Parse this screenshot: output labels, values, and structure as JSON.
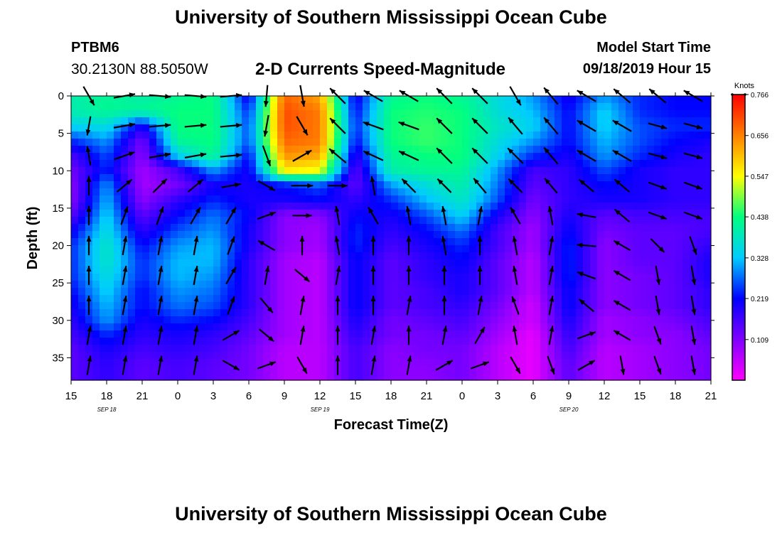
{
  "header": {
    "title": "University of Southern Mississippi Ocean Cube",
    "station_id": "PTBM6",
    "station_coords": "30.2130N 88.5050W",
    "subtitle": "2-D Currents Speed-Magnitude",
    "model_start_label": "Model Start Time",
    "model_start_value": "09/18/2019 Hour 15"
  },
  "footer": {
    "title": "University of Southern Mississippi Ocean Cube"
  },
  "chart_data": {
    "type": "heatmap",
    "title": "2-D Currents Speed-Magnitude",
    "xlabel": "Forecast Time(Z)",
    "ylabel": "Depth (ft)",
    "x_tick_labels": [
      "15",
      "18",
      "21",
      "0",
      "3",
      "6",
      "9",
      "12",
      "15",
      "18",
      "21",
      "0",
      "3",
      "6",
      "9",
      "12",
      "15",
      "18",
      "21"
    ],
    "date_labels": [
      {
        "text": "SEP 18",
        "at_tick": 1
      },
      {
        "text": "SEP 19",
        "at_tick": 7
      },
      {
        "text": "SEP 20",
        "at_tick": 14
      }
    ],
    "xlim_hours": [
      0,
      54
    ],
    "y_ticks": [
      0,
      5,
      10,
      15,
      20,
      25,
      30,
      35
    ],
    "ylim_ft": [
      0,
      38
    ],
    "y_inverted": true,
    "colorbar": {
      "unit_label": "Knots",
      "tick_labels": [
        "0.766",
        "0.656",
        "0.547",
        "0.438",
        "0.328",
        "0.219",
        "0.109"
      ],
      "range": [
        0,
        0.766
      ],
      "colors": [
        "#ff00ff",
        "#8000ff",
        "#0000ff",
        "#00ccff",
        "#00ff80",
        "#ffff00",
        "#ff8000",
        "#ff0000"
      ]
    },
    "speed_grid": {
      "depths_ft": [
        0,
        2,
        4,
        6,
        8,
        10,
        12,
        14,
        16,
        18,
        20,
        22,
        24,
        26,
        28,
        30,
        32,
        34,
        36,
        38
      ],
      "hours": [
        0,
        3,
        6,
        9,
        12,
        15,
        18,
        21,
        24,
        27,
        30,
        33,
        36,
        39,
        42,
        45,
        48,
        51,
        54
      ],
      "values": [
        [
          0.4,
          0.42,
          0.4,
          0.42,
          0.44,
          0.2,
          0.68,
          0.62,
          0.2,
          0.42,
          0.44,
          0.42,
          0.36,
          0.3,
          0.2,
          0.3,
          0.24,
          0.22,
          0.22
        ],
        [
          0.4,
          0.42,
          0.42,
          0.44,
          0.44,
          0.24,
          0.7,
          0.66,
          0.22,
          0.44,
          0.45,
          0.44,
          0.36,
          0.32,
          0.22,
          0.34,
          0.24,
          0.22,
          0.22
        ],
        [
          0.34,
          0.36,
          0.2,
          0.44,
          0.44,
          0.26,
          0.7,
          0.66,
          0.24,
          0.44,
          0.46,
          0.44,
          0.38,
          0.34,
          0.22,
          0.34,
          0.26,
          0.24,
          0.24
        ],
        [
          0.24,
          0.3,
          0.12,
          0.42,
          0.44,
          0.26,
          0.68,
          0.66,
          0.22,
          0.44,
          0.46,
          0.44,
          0.36,
          0.3,
          0.22,
          0.32,
          0.26,
          0.22,
          0.2
        ],
        [
          0.16,
          0.26,
          0.1,
          0.34,
          0.42,
          0.22,
          0.64,
          0.62,
          0.18,
          0.42,
          0.44,
          0.44,
          0.34,
          0.24,
          0.2,
          0.3,
          0.24,
          0.2,
          0.18
        ],
        [
          0.12,
          0.24,
          0.08,
          0.16,
          0.3,
          0.2,
          0.56,
          0.54,
          0.14,
          0.4,
          0.42,
          0.42,
          0.3,
          0.16,
          0.18,
          0.26,
          0.2,
          0.18,
          0.18
        ],
        [
          0.1,
          0.3,
          0.08,
          0.12,
          0.2,
          0.2,
          0.22,
          0.26,
          0.14,
          0.3,
          0.36,
          0.4,
          0.28,
          0.14,
          0.18,
          0.22,
          0.2,
          0.18,
          0.18
        ],
        [
          0.1,
          0.32,
          0.1,
          0.18,
          0.24,
          0.2,
          0.2,
          0.22,
          0.18,
          0.24,
          0.32,
          0.38,
          0.26,
          0.12,
          0.18,
          0.2,
          0.2,
          0.18,
          0.18
        ],
        [
          0.14,
          0.34,
          0.14,
          0.22,
          0.28,
          0.22,
          0.1,
          0.1,
          0.22,
          0.2,
          0.26,
          0.34,
          0.2,
          0.1,
          0.2,
          0.14,
          0.16,
          0.16,
          0.16
        ],
        [
          0.2,
          0.36,
          0.18,
          0.26,
          0.3,
          0.2,
          0.1,
          0.08,
          0.24,
          0.18,
          0.22,
          0.28,
          0.16,
          0.08,
          0.22,
          0.12,
          0.14,
          0.14,
          0.16
        ],
        [
          0.24,
          0.38,
          0.22,
          0.3,
          0.32,
          0.2,
          0.1,
          0.08,
          0.24,
          0.16,
          0.2,
          0.24,
          0.16,
          0.08,
          0.24,
          0.1,
          0.14,
          0.14,
          0.18
        ],
        [
          0.24,
          0.38,
          0.24,
          0.32,
          0.32,
          0.18,
          0.08,
          0.06,
          0.22,
          0.14,
          0.18,
          0.22,
          0.14,
          0.06,
          0.24,
          0.1,
          0.14,
          0.14,
          0.2
        ],
        [
          0.24,
          0.36,
          0.24,
          0.32,
          0.3,
          0.18,
          0.08,
          0.06,
          0.22,
          0.14,
          0.18,
          0.2,
          0.14,
          0.06,
          0.24,
          0.1,
          0.12,
          0.14,
          0.2
        ],
        [
          0.22,
          0.34,
          0.22,
          0.3,
          0.28,
          0.18,
          0.08,
          0.06,
          0.22,
          0.14,
          0.16,
          0.2,
          0.14,
          0.06,
          0.22,
          0.1,
          0.12,
          0.14,
          0.18
        ],
        [
          0.2,
          0.32,
          0.22,
          0.28,
          0.26,
          0.18,
          0.08,
          0.06,
          0.22,
          0.14,
          0.16,
          0.18,
          0.12,
          0.04,
          0.22,
          0.1,
          0.12,
          0.14,
          0.18
        ],
        [
          0.18,
          0.3,
          0.2,
          0.24,
          0.22,
          0.16,
          0.08,
          0.06,
          0.2,
          0.12,
          0.14,
          0.16,
          0.1,
          0.04,
          0.2,
          0.08,
          0.1,
          0.12,
          0.16
        ],
        [
          0.16,
          0.24,
          0.18,
          0.2,
          0.18,
          0.14,
          0.08,
          0.06,
          0.18,
          0.12,
          0.12,
          0.14,
          0.08,
          0.02,
          0.18,
          0.08,
          0.1,
          0.1,
          0.14
        ],
        [
          0.14,
          0.2,
          0.16,
          0.18,
          0.16,
          0.12,
          0.06,
          0.06,
          0.16,
          0.1,
          0.12,
          0.12,
          0.06,
          0.02,
          0.16,
          0.06,
          0.08,
          0.1,
          0.12
        ],
        [
          0.14,
          0.18,
          0.14,
          0.16,
          0.14,
          0.12,
          0.06,
          0.06,
          0.16,
          0.1,
          0.1,
          0.12,
          0.06,
          0.02,
          0.14,
          0.06,
          0.08,
          0.1,
          0.12
        ],
        [
          0.14,
          0.18,
          0.14,
          0.16,
          0.14,
          0.12,
          0.06,
          0.06,
          0.16,
          0.1,
          0.1,
          0.12,
          0.06,
          0.02,
          0.14,
          0.06,
          0.08,
          0.1,
          0.12
        ]
      ]
    },
    "current_vectors": {
      "note": "Direction angles in degrees (0 = pointing right, 90 = pointing up on the figure), relative length 0-1",
      "depths_ft": [
        0,
        4,
        8,
        12,
        16,
        20,
        24,
        28,
        32,
        36
      ],
      "hours": [
        1.5,
        4.5,
        7.5,
        10.5,
        13.5,
        16.5,
        19.5,
        22.5,
        25.5,
        28.5,
        31.5,
        34.5,
        37.5,
        40.5,
        43.5,
        46.5,
        49.5,
        52.5
      ],
      "angles": [
        [
          -60,
          10,
          -5,
          -5,
          5,
          -95,
          -80,
          135,
          150,
          150,
          135,
          135,
          -60,
          130,
          150,
          140,
          140,
          150
        ],
        [
          -100,
          10,
          5,
          5,
          5,
          -100,
          -60,
          135,
          160,
          160,
          135,
          135,
          130,
          130,
          150,
          150,
          -15,
          -15
        ],
        [
          100,
          20,
          10,
          10,
          5,
          -70,
          30,
          140,
          155,
          155,
          135,
          135,
          135,
          130,
          150,
          150,
          -15,
          -15
        ],
        [
          90,
          40,
          45,
          40,
          10,
          -30,
          0,
          0,
          100,
          135,
          135,
          130,
          135,
          130,
          140,
          140,
          -20,
          -20
        ],
        [
          90,
          70,
          70,
          60,
          60,
          20,
          0,
          100,
          120,
          100,
          100,
          80,
          120,
          100,
          170,
          140,
          -20,
          -20
        ],
        [
          90,
          80,
          80,
          80,
          70,
          150,
          90,
          100,
          90,
          90,
          100,
          90,
          100,
          80,
          175,
          150,
          -45,
          -70
        ],
        [
          90,
          80,
          80,
          80,
          60,
          80,
          -40,
          80,
          90,
          90,
          90,
          90,
          100,
          80,
          160,
          150,
          -80,
          -80
        ],
        [
          90,
          80,
          80,
          80,
          70,
          -50,
          80,
          90,
          90,
          80,
          90,
          80,
          110,
          80,
          140,
          150,
          -80,
          -80
        ],
        [
          80,
          80,
          80,
          80,
          30,
          -40,
          80,
          90,
          80,
          90,
          80,
          60,
          100,
          80,
          20,
          150,
          -70,
          -80
        ],
        [
          80,
          80,
          80,
          80,
          -30,
          20,
          -60,
          90,
          80,
          80,
          30,
          20,
          -60,
          -70,
          30,
          -80,
          -70,
          -80
        ]
      ],
      "lengths": [
        [
          0.9,
          0.9,
          0.9,
          0.9,
          0.9,
          0.9,
          0.9,
          0.9,
          0.9,
          0.9,
          0.9,
          0.9,
          0.9,
          0.9,
          0.9,
          0.9,
          0.9,
          0.9
        ],
        [
          0.8,
          0.9,
          0.9,
          0.9,
          0.9,
          0.9,
          0.9,
          0.9,
          0.9,
          0.9,
          0.9,
          0.9,
          0.9,
          0.9,
          0.9,
          0.9,
          0.8,
          0.8
        ],
        [
          0.8,
          0.9,
          0.9,
          0.9,
          0.9,
          0.9,
          0.9,
          0.9,
          0.9,
          0.9,
          0.9,
          0.9,
          0.9,
          0.9,
          0.9,
          0.9,
          0.8,
          0.8
        ],
        [
          0.8,
          0.8,
          0.8,
          0.8,
          0.8,
          0.8,
          0.9,
          0.8,
          0.8,
          0.8,
          0.8,
          0.8,
          0.8,
          0.8,
          0.8,
          0.8,
          0.8,
          0.8
        ],
        [
          0.8,
          0.8,
          0.8,
          0.8,
          0.8,
          0.8,
          0.8,
          0.8,
          0.8,
          0.8,
          0.8,
          0.8,
          0.8,
          0.8,
          0.8,
          0.8,
          0.8,
          0.8
        ],
        [
          0.8,
          0.8,
          0.8,
          0.8,
          0.8,
          0.8,
          0.8,
          0.8,
          0.8,
          0.8,
          0.8,
          0.8,
          0.8,
          0.8,
          0.8,
          0.8,
          0.8,
          0.8
        ],
        [
          0.8,
          0.8,
          0.8,
          0.8,
          0.8,
          0.8,
          0.8,
          0.8,
          0.8,
          0.8,
          0.8,
          0.8,
          0.8,
          0.8,
          0.8,
          0.8,
          0.8,
          0.8
        ],
        [
          0.8,
          0.8,
          0.8,
          0.8,
          0.8,
          0.8,
          0.8,
          0.8,
          0.8,
          0.8,
          0.8,
          0.8,
          0.8,
          0.8,
          0.8,
          0.8,
          0.8,
          0.8
        ],
        [
          0.8,
          0.8,
          0.8,
          0.8,
          0.8,
          0.8,
          0.8,
          0.8,
          0.8,
          0.8,
          0.8,
          0.8,
          0.8,
          0.8,
          0.8,
          0.8,
          0.8,
          0.8
        ],
        [
          0.8,
          0.8,
          0.8,
          0.8,
          0.8,
          0.8,
          0.8,
          0.8,
          0.8,
          0.8,
          0.8,
          0.8,
          0.8,
          0.8,
          0.8,
          0.8,
          0.8,
          0.8
        ]
      ]
    }
  }
}
